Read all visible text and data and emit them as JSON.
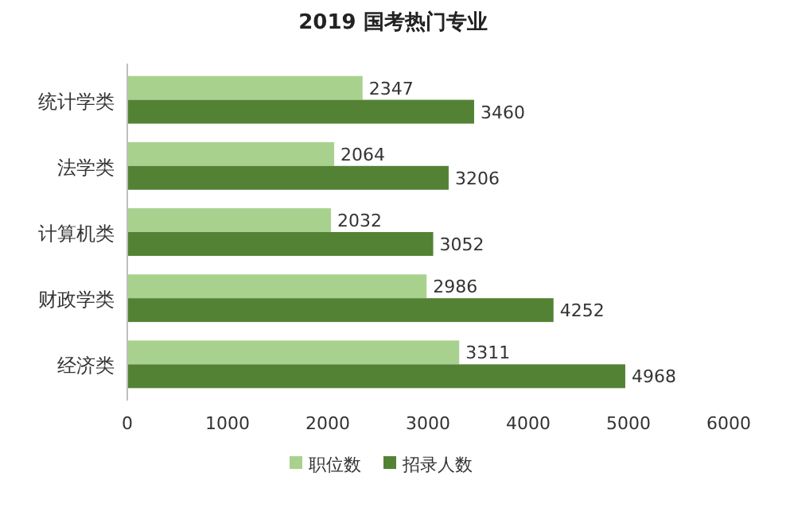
{
  "chart_data": {
    "type": "bar",
    "orientation": "horizontal",
    "title": "2019 国考热门专业",
    "categories": [
      "统计学类",
      "法学类",
      "计算机类",
      "财政学类",
      "经济类"
    ],
    "series": [
      {
        "name": "职位数",
        "color": "#a9d18e",
        "values": [
          2347,
          2064,
          2032,
          2986,
          3311
        ]
      },
      {
        "name": "招录人数",
        "color": "#548235",
        "values": [
          3460,
          3206,
          3052,
          4252,
          4968
        ]
      }
    ],
    "xlim": [
      0,
      6000
    ],
    "xticks": [
      0,
      1000,
      2000,
      3000,
      4000,
      5000,
      6000
    ],
    "data_labels": true,
    "legend": "bottom"
  }
}
